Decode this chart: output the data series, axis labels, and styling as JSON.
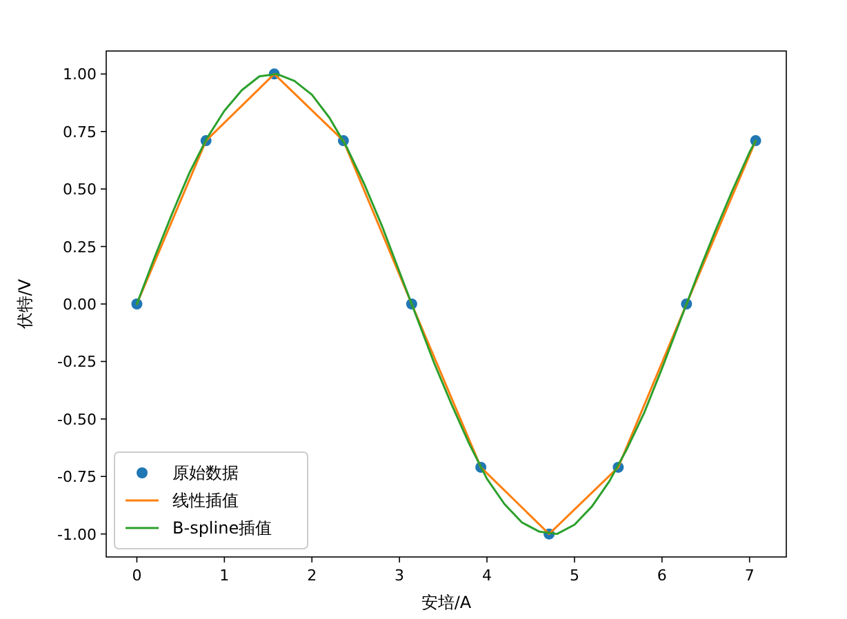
{
  "chart_data": {
    "type": "line",
    "xlabel": "安培/A",
    "ylabel": "伏特/V",
    "xlim": [
      -0.35,
      7.42
    ],
    "ylim": [
      -1.1,
      1.1
    ],
    "xticks": [
      0,
      1,
      2,
      3,
      4,
      5,
      6,
      7
    ],
    "yticks": [
      {
        "value": -1,
        "label": "-1.00"
      },
      {
        "value": -0.75,
        "label": "-0.75"
      },
      {
        "value": -0.5,
        "label": "-0.50"
      },
      {
        "value": -0.25,
        "label": "-0.25"
      },
      {
        "value": 0,
        "label": "0.00"
      },
      {
        "value": 0.25,
        "label": "0.25"
      },
      {
        "value": 0.5,
        "label": "0.50"
      },
      {
        "value": 0.75,
        "label": "0.75"
      },
      {
        "value": 1,
        "label": "1.00"
      }
    ],
    "legend": "bottom left",
    "series": [
      {
        "name": "原始数据",
        "type": "scatter",
        "marker": "circle",
        "color": "#1f77b4",
        "x": [
          0,
          0.79,
          1.57,
          2.36,
          3.14,
          3.93,
          4.71,
          5.5,
          6.28,
          7.07
        ],
        "values": [
          0,
          0.71,
          1,
          0.71,
          0,
          -0.71,
          -1,
          -0.71,
          0,
          0.71
        ]
      },
      {
        "name": "线性插值",
        "color": "#ff7f0e",
        "x": [
          0,
          0.79,
          1.57,
          2.36,
          3.14,
          3.93,
          4.71,
          5.5,
          6.28,
          7.07
        ],
        "values": [
          0,
          0.71,
          1,
          0.71,
          0,
          -0.71,
          -1,
          -0.71,
          0,
          0.71
        ]
      },
      {
        "name": "B-spline插值",
        "color": "#2ca02c",
        "x": [
          0,
          0.2,
          0.4,
          0.6,
          0.8,
          1.0,
          1.2,
          1.4,
          1.6,
          1.8,
          2.0,
          2.2,
          2.4,
          2.6,
          2.8,
          3.0,
          3.2,
          3.4,
          3.6,
          3.8,
          4.0,
          4.2,
          4.4,
          4.6,
          4.8,
          5.0,
          5.2,
          5.4,
          5.6,
          5.8,
          6.0,
          6.2,
          6.4,
          6.6,
          6.8,
          7.0,
          7.07
        ],
        "values": [
          0,
          0.2,
          0.39,
          0.57,
          0.72,
          0.84,
          0.93,
          0.99,
          1.0,
          0.97,
          0.91,
          0.81,
          0.68,
          0.52,
          0.34,
          0.14,
          -0.06,
          -0.26,
          -0.44,
          -0.61,
          -0.76,
          -0.87,
          -0.95,
          -0.99,
          -1.0,
          -0.96,
          -0.88,
          -0.77,
          -0.63,
          -0.47,
          -0.28,
          -0.08,
          0.12,
          0.31,
          0.49,
          0.66,
          0.71
        ]
      }
    ]
  }
}
